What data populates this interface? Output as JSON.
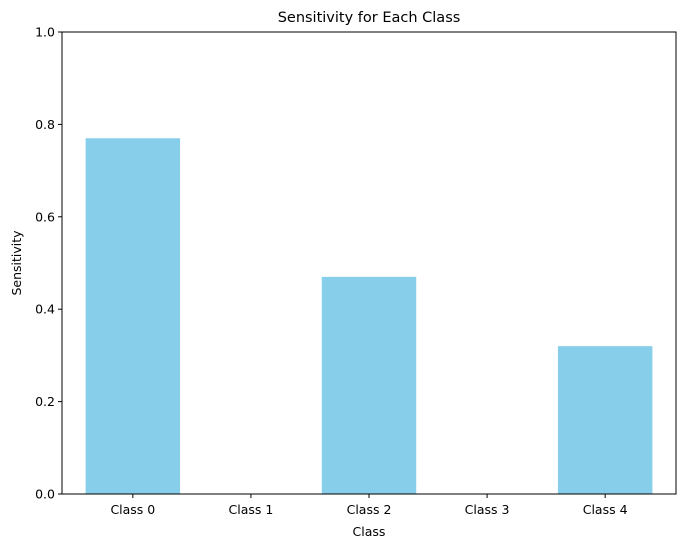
{
  "chart_data": {
    "type": "bar",
    "title": "Sensitivity for Each Class",
    "xlabel": "Class",
    "ylabel": "Sensitivity",
    "categories": [
      "Class 0",
      "Class 1",
      "Class 2",
      "Class 3",
      "Class 4"
    ],
    "values": [
      0.77,
      0.0,
      0.47,
      0.0,
      0.32
    ],
    "ylim": [
      0,
      1
    ],
    "yticks": [
      0.0,
      0.2,
      0.4,
      0.6,
      0.8,
      1.0
    ],
    "ytick_labels": [
      "0.0",
      "0.2",
      "0.4",
      "0.6",
      "0.8",
      "1.0"
    ],
    "bar_color": "#87ceeb",
    "grid": false,
    "legend": "none"
  }
}
